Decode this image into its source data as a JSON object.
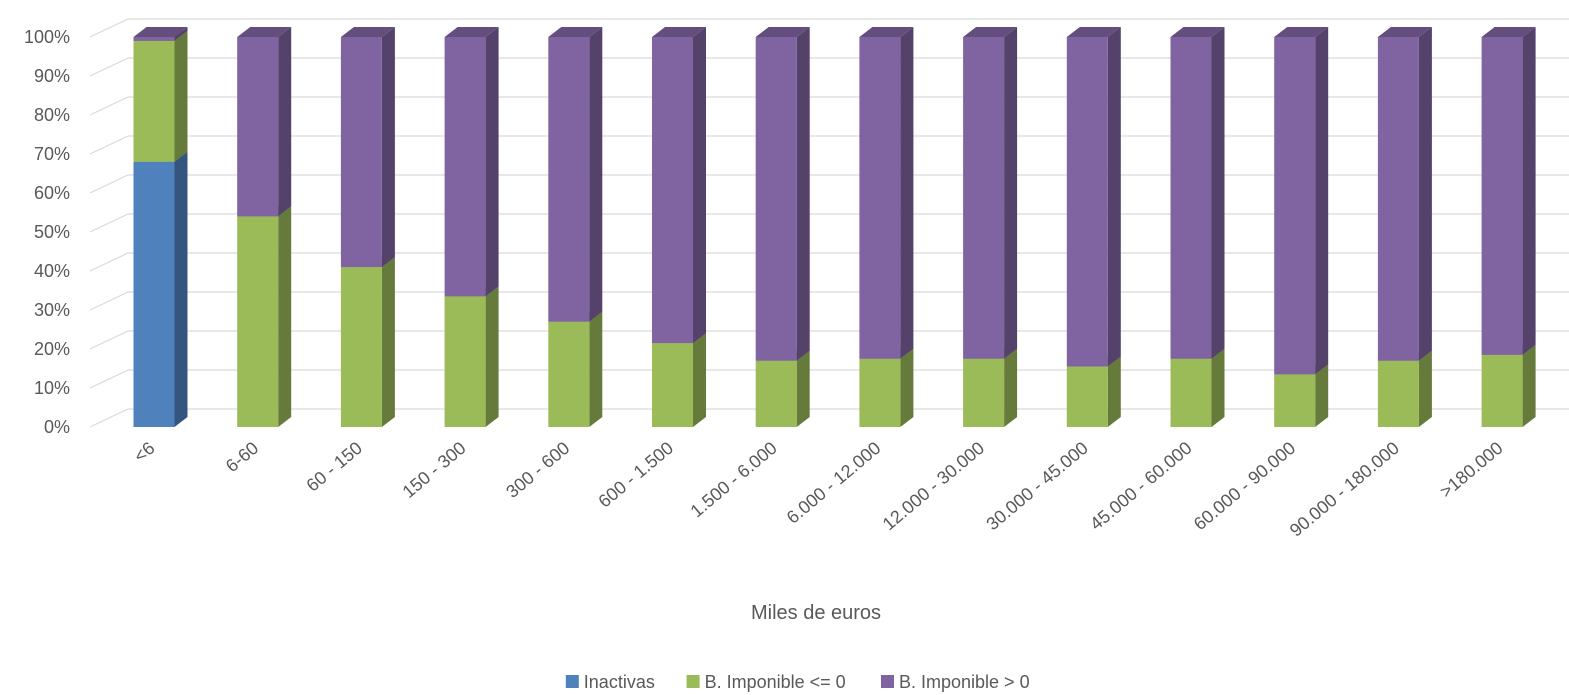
{
  "chart_data": {
    "type": "bar",
    "stacked": true,
    "percent_stacked": true,
    "three_d": true,
    "title": "",
    "xlabel": "Miles de euros",
    "ylabel": "",
    "ylim": [
      0,
      100
    ],
    "yticks": [
      "0%",
      "10%",
      "20%",
      "30%",
      "40%",
      "50%",
      "60%",
      "70%",
      "80%",
      "90%",
      "100%"
    ],
    "grid": true,
    "legend_position": "bottom",
    "categories": [
      "<6",
      "6-60",
      "60 - 150",
      "150 - 300",
      "300 - 600",
      "600 - 1.500",
      "1.500 - 6.000",
      "6.000 - 12.000",
      "12.000 - 30.000",
      "30.000 - 45.000",
      "45.000 - 60.000",
      "60.000 - 90.000",
      "90.000 - 180.000",
      ">180.000"
    ],
    "series": [
      {
        "name": "Inactivas",
        "color": "#4F81BD",
        "values": [
          68,
          0,
          0,
          0,
          0,
          0,
          0,
          0,
          0,
          0,
          0,
          0,
          0,
          0
        ]
      },
      {
        "name": "B. Imponible <= 0",
        "color": "#9BBB59",
        "values": [
          31,
          54,
          41,
          33.5,
          27,
          21.5,
          17,
          17.5,
          17.5,
          15.5,
          17.5,
          13.5,
          17,
          18.5
        ]
      },
      {
        "name": "B. Imponible > 0",
        "color": "#8064A2",
        "values": [
          1,
          46,
          59,
          66.5,
          73,
          78.5,
          83,
          82.5,
          82.5,
          84.5,
          82.5,
          86.5,
          83,
          81.5
        ]
      }
    ]
  }
}
